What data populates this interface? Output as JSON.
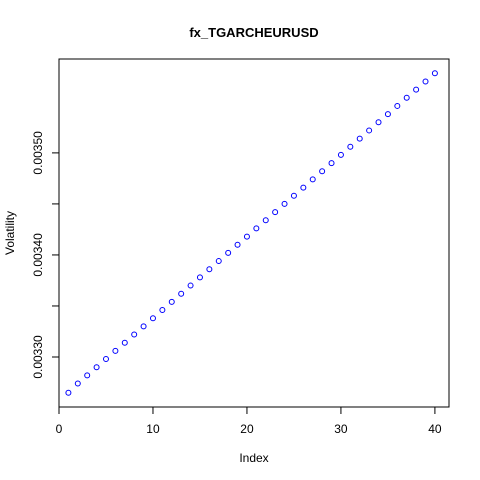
{
  "chart_data": {
    "type": "scatter",
    "title": "fx_TGARCHEURUSD",
    "xlabel": "Index",
    "ylabel": "Volatility",
    "x": [
      1,
      2,
      3,
      4,
      5,
      6,
      7,
      8,
      9,
      10,
      11,
      12,
      13,
      14,
      15,
      16,
      17,
      18,
      19,
      20,
      21,
      22,
      23,
      24,
      25,
      26,
      27,
      28,
      29,
      30,
      31,
      32,
      33,
      34,
      35,
      36,
      37,
      38,
      39,
      40
    ],
    "y": [
      0.003265,
      0.003274,
      0.003282,
      0.00329,
      0.003298,
      0.003306,
      0.003314,
      0.003322,
      0.00333,
      0.003338,
      0.003346,
      0.003354,
      0.003362,
      0.00337,
      0.003378,
      0.003386,
      0.003394,
      0.003402,
      0.00341,
      0.003418,
      0.003426,
      0.003434,
      0.003442,
      0.00345,
      0.003458,
      0.003466,
      0.003474,
      0.003482,
      0.00349,
      0.003498,
      0.003506,
      0.003514,
      0.003522,
      0.00353,
      0.003538,
      0.003546,
      0.003554,
      0.003562,
      0.00357,
      0.003578
    ],
    "xlim": [
      0,
      41.5
    ],
    "ylim": [
      0.003251,
      0.003592
    ],
    "xticks": [
      0,
      10,
      20,
      30,
      40
    ],
    "xtick_labels": [
      "0",
      "10",
      "20",
      "30",
      "40"
    ],
    "yticks": [
      0.0033,
      0.00335,
      0.0034,
      0.00345,
      0.0035
    ],
    "ytick_labels": [
      "0.00330",
      "",
      "0.00340",
      "",
      "0.00350"
    ],
    "point_color": "#0000ff",
    "marker": "open-circle",
    "grid": false,
    "legend": "none"
  }
}
